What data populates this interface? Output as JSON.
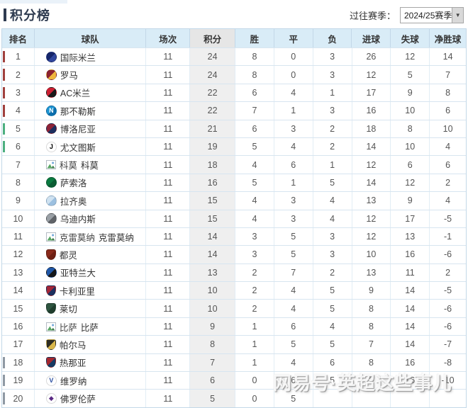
{
  "page": {
    "title": "积分榜"
  },
  "season_selector": {
    "label": "过往赛季：",
    "value": "2024/25赛季",
    "arrow_icon": "▼"
  },
  "watermark": "网易号·英超这些事儿",
  "colors": {
    "accent": "#2e3b50",
    "header_bg": "#d9ecf7",
    "sorted_header_bg": "#e6e6e6",
    "sorted_cell_bg": "#efefef",
    "bar_cl": "#a0403d",
    "bar_el": "#4caf7f",
    "bar_rel": "#8f99a3"
  },
  "table": {
    "columns": [
      "排名",
      "球队",
      "场次",
      "积分",
      "胜",
      "平",
      "负",
      "进球",
      "失球",
      "净胜球"
    ],
    "sorted_column_index": 3,
    "rows": [
      {
        "rank": "1",
        "team": "国际米兰",
        "played": "11",
        "points": "24",
        "win": "8",
        "draw": "0",
        "loss": "3",
        "gf": "26",
        "ga": "12",
        "gd": "14",
        "bar": "cl",
        "logo": {
          "shape": "circle",
          "c1": "#16266b",
          "c2": "#31479e",
          "glyph": "",
          "glyph_color": "#ffffff"
        }
      },
      {
        "rank": "2",
        "team": "罗马",
        "played": "11",
        "points": "24",
        "win": "8",
        "draw": "0",
        "loss": "3",
        "gf": "12",
        "ga": "5",
        "gd": "7",
        "bar": "cl",
        "logo": {
          "shape": "circle",
          "c1": "#8c2232",
          "c2": "#f0b73e",
          "glyph": "",
          "glyph_color": "#ffffff"
        }
      },
      {
        "rank": "3",
        "team": "AC米兰",
        "played": "11",
        "points": "22",
        "win": "6",
        "draw": "4",
        "loss": "1",
        "gf": "17",
        "ga": "9",
        "gd": "8",
        "bar": "cl",
        "logo": {
          "shape": "circle",
          "c1": "#cc2033",
          "c2": "#1a1a1a",
          "glyph": "",
          "glyph_color": "#ffffff"
        }
      },
      {
        "rank": "4",
        "team": "那不勒斯",
        "played": "11",
        "points": "22",
        "win": "7",
        "draw": "1",
        "loss": "3",
        "gf": "16",
        "ga": "10",
        "gd": "6",
        "bar": "cl",
        "logo": {
          "shape": "circle",
          "c1": "#1f96d4",
          "c2": "#0b6fae",
          "glyph": "N",
          "glyph_color": "#ffffff"
        }
      },
      {
        "rank": "5",
        "team": "博洛尼亚",
        "played": "11",
        "points": "21",
        "win": "6",
        "draw": "3",
        "loss": "2",
        "gf": "18",
        "ga": "8",
        "gd": "10",
        "bar": "el",
        "logo": {
          "shape": "circle",
          "c1": "#8e2338",
          "c2": "#1d2f5e",
          "glyph": "",
          "glyph_color": "#ffffff"
        }
      },
      {
        "rank": "6",
        "team": "尤文图斯",
        "played": "11",
        "points": "19",
        "win": "5",
        "draw": "4",
        "loss": "2",
        "gf": "14",
        "ga": "10",
        "gd": "4",
        "bar": "el",
        "logo": {
          "shape": "circle",
          "c1": "#ffffff",
          "c2": "#ffffff",
          "glyph": "J",
          "glyph_color": "#000000"
        }
      },
      {
        "rank": "7",
        "team": "科莫",
        "alt": "科莫",
        "played": "11",
        "points": "18",
        "win": "4",
        "draw": "6",
        "loss": "1",
        "gf": "12",
        "ga": "6",
        "gd": "6",
        "bar": "",
        "logo": {
          "shape": "broken"
        }
      },
      {
        "rank": "8",
        "team": "萨索洛",
        "played": "11",
        "points": "16",
        "win": "5",
        "draw": "1",
        "loss": "5",
        "gf": "14",
        "ga": "12",
        "gd": "2",
        "bar": "",
        "logo": {
          "shape": "circle",
          "c1": "#0a7a40",
          "c2": "#0a5c33",
          "glyph": "",
          "glyph_color": "#ffffff"
        }
      },
      {
        "rank": "9",
        "team": "拉齐奥",
        "played": "11",
        "points": "15",
        "win": "4",
        "draw": "3",
        "loss": "4",
        "gf": "13",
        "ga": "9",
        "gd": "4",
        "bar": "",
        "logo": {
          "shape": "circle",
          "c1": "#cfe2f1",
          "c2": "#9cc0e0",
          "glyph": "",
          "glyph_color": "#3a6ea5"
        }
      },
      {
        "rank": "10",
        "team": "乌迪内斯",
        "played": "11",
        "points": "15",
        "win": "4",
        "draw": "3",
        "loss": "4",
        "gf": "12",
        "ga": "17",
        "gd": "-5",
        "bar": "",
        "logo": {
          "shape": "circle",
          "c1": "#9aa0a6",
          "c2": "#5f6368",
          "glyph": "",
          "glyph_color": "#ffffff"
        }
      },
      {
        "rank": "11",
        "team": "克雷莫纳",
        "alt": "克雷莫纳",
        "played": "11",
        "points": "14",
        "win": "3",
        "draw": "5",
        "loss": "3",
        "gf": "12",
        "ga": "13",
        "gd": "-1",
        "bar": "",
        "logo": {
          "shape": "broken"
        }
      },
      {
        "rank": "12",
        "team": "都灵",
        "played": "11",
        "points": "14",
        "win": "3",
        "draw": "5",
        "loss": "3",
        "gf": "10",
        "ga": "16",
        "gd": "-6",
        "bar": "",
        "logo": {
          "shape": "shield",
          "c1": "#8a2a1b",
          "c2": "#6e1f12",
          "glyph": "",
          "glyph_color": "#ffffff"
        }
      },
      {
        "rank": "13",
        "team": "亚特兰大",
        "played": "11",
        "points": "13",
        "win": "2",
        "draw": "7",
        "loss": "2",
        "gf": "13",
        "ga": "11",
        "gd": "2",
        "bar": "",
        "logo": {
          "shape": "circle",
          "c1": "#2057a7",
          "c2": "#15171a",
          "glyph": "",
          "glyph_color": "#ffffff"
        }
      },
      {
        "rank": "14",
        "team": "卡利亚里",
        "played": "11",
        "points": "10",
        "win": "2",
        "draw": "4",
        "loss": "5",
        "gf": "9",
        "ga": "14",
        "gd": "-5",
        "bar": "",
        "logo": {
          "shape": "shield",
          "c1": "#a32638",
          "c2": "#1c2f5e",
          "glyph": "",
          "glyph_color": "#ffffff"
        }
      },
      {
        "rank": "15",
        "team": "莱切",
        "played": "11",
        "points": "10",
        "win": "2",
        "draw": "4",
        "loss": "5",
        "gf": "8",
        "ga": "14",
        "gd": "-6",
        "bar": "",
        "logo": {
          "shape": "shield",
          "c1": "#2e5540",
          "c2": "#1f3d2d",
          "glyph": "",
          "glyph_color": "#f0c541"
        }
      },
      {
        "rank": "16",
        "team": "比萨",
        "alt": "比萨",
        "played": "11",
        "points": "9",
        "win": "1",
        "draw": "6",
        "loss": "4",
        "gf": "8",
        "ga": "14",
        "gd": "-6",
        "bar": "",
        "logo": {
          "shape": "broken"
        }
      },
      {
        "rank": "17",
        "team": "帕尔马",
        "played": "11",
        "points": "8",
        "win": "1",
        "draw": "5",
        "loss": "5",
        "gf": "7",
        "ga": "14",
        "gd": "-7",
        "bar": "",
        "logo": {
          "shape": "shield",
          "c1": "#2d2d25",
          "c2": "#d8b64a",
          "glyph": "",
          "glyph_color": "#ffffff"
        }
      },
      {
        "rank": "18",
        "team": "热那亚",
        "played": "11",
        "points": "7",
        "win": "1",
        "draw": "4",
        "loss": "6",
        "gf": "8",
        "ga": "16",
        "gd": "-8",
        "bar": "rel",
        "logo": {
          "shape": "shield",
          "c1": "#a5272f",
          "c2": "#173a63",
          "glyph": "",
          "glyph_color": "#ffffff"
        }
      },
      {
        "rank": "19",
        "team": "维罗纳",
        "played": "11",
        "points": "6",
        "win": "0",
        "draw": "6",
        "loss": "5",
        "gf": "6",
        "ga": "16",
        "gd": "-10",
        "bar": "rel",
        "logo": {
          "shape": "circle",
          "c1": "#ffffff",
          "c2": "#ffffff",
          "glyph": "V",
          "glyph_color": "#2b4fa0"
        }
      },
      {
        "rank": "20",
        "team": "佛罗伦萨",
        "played": "11",
        "points": "5",
        "win": "0",
        "draw": "5",
        "loss": "",
        "gf": "",
        "ga": "",
        "gd": "",
        "bar": "rel",
        "logo": {
          "shape": "circle",
          "c1": "#ffffff",
          "c2": "#ffffff",
          "glyph": "◆",
          "glyph_color": "#5b2a84"
        }
      }
    ]
  }
}
